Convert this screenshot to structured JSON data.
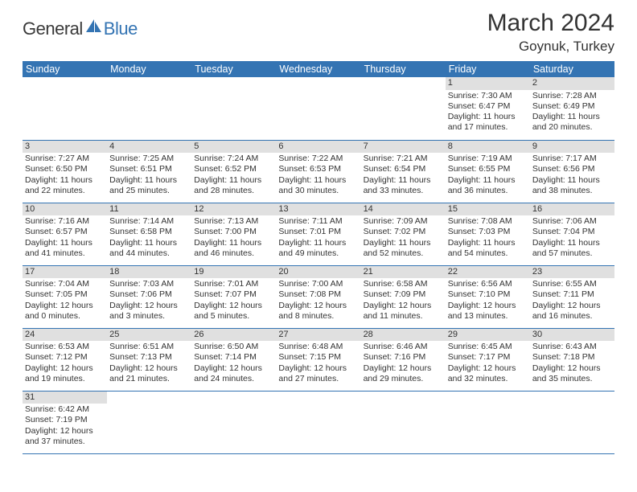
{
  "logo": {
    "text1": "General",
    "text2": "Blue"
  },
  "title": "March 2024",
  "location": "Goynuk, Turkey",
  "colors": {
    "header_bg": "#3474b3",
    "header_fg": "#ffffff",
    "daynum_bg": "#e0e0e0",
    "rule": "#3474b3",
    "logo_blue": "#3474b3",
    "text": "#333333"
  },
  "daynames": [
    "Sunday",
    "Monday",
    "Tuesday",
    "Wednesday",
    "Thursday",
    "Friday",
    "Saturday"
  ],
  "rows": [
    [
      null,
      null,
      null,
      null,
      null,
      {
        "n": "1",
        "sr": "7:30 AM",
        "ss": "6:47 PM",
        "dl": "11 hours and 17 minutes."
      },
      {
        "n": "2",
        "sr": "7:28 AM",
        "ss": "6:49 PM",
        "dl": "11 hours and 20 minutes."
      }
    ],
    [
      {
        "n": "3",
        "sr": "7:27 AM",
        "ss": "6:50 PM",
        "dl": "11 hours and 22 minutes."
      },
      {
        "n": "4",
        "sr": "7:25 AM",
        "ss": "6:51 PM",
        "dl": "11 hours and 25 minutes."
      },
      {
        "n": "5",
        "sr": "7:24 AM",
        "ss": "6:52 PM",
        "dl": "11 hours and 28 minutes."
      },
      {
        "n": "6",
        "sr": "7:22 AM",
        "ss": "6:53 PM",
        "dl": "11 hours and 30 minutes."
      },
      {
        "n": "7",
        "sr": "7:21 AM",
        "ss": "6:54 PM",
        "dl": "11 hours and 33 minutes."
      },
      {
        "n": "8",
        "sr": "7:19 AM",
        "ss": "6:55 PM",
        "dl": "11 hours and 36 minutes."
      },
      {
        "n": "9",
        "sr": "7:17 AM",
        "ss": "6:56 PM",
        "dl": "11 hours and 38 minutes."
      }
    ],
    [
      {
        "n": "10",
        "sr": "7:16 AM",
        "ss": "6:57 PM",
        "dl": "11 hours and 41 minutes."
      },
      {
        "n": "11",
        "sr": "7:14 AM",
        "ss": "6:58 PM",
        "dl": "11 hours and 44 minutes."
      },
      {
        "n": "12",
        "sr": "7:13 AM",
        "ss": "7:00 PM",
        "dl": "11 hours and 46 minutes."
      },
      {
        "n": "13",
        "sr": "7:11 AM",
        "ss": "7:01 PM",
        "dl": "11 hours and 49 minutes."
      },
      {
        "n": "14",
        "sr": "7:09 AM",
        "ss": "7:02 PM",
        "dl": "11 hours and 52 minutes."
      },
      {
        "n": "15",
        "sr": "7:08 AM",
        "ss": "7:03 PM",
        "dl": "11 hours and 54 minutes."
      },
      {
        "n": "16",
        "sr": "7:06 AM",
        "ss": "7:04 PM",
        "dl": "11 hours and 57 minutes."
      }
    ],
    [
      {
        "n": "17",
        "sr": "7:04 AM",
        "ss": "7:05 PM",
        "dl": "12 hours and 0 minutes."
      },
      {
        "n": "18",
        "sr": "7:03 AM",
        "ss": "7:06 PM",
        "dl": "12 hours and 3 minutes."
      },
      {
        "n": "19",
        "sr": "7:01 AM",
        "ss": "7:07 PM",
        "dl": "12 hours and 5 minutes."
      },
      {
        "n": "20",
        "sr": "7:00 AM",
        "ss": "7:08 PM",
        "dl": "12 hours and 8 minutes."
      },
      {
        "n": "21",
        "sr": "6:58 AM",
        "ss": "7:09 PM",
        "dl": "12 hours and 11 minutes."
      },
      {
        "n": "22",
        "sr": "6:56 AM",
        "ss": "7:10 PM",
        "dl": "12 hours and 13 minutes."
      },
      {
        "n": "23",
        "sr": "6:55 AM",
        "ss": "7:11 PM",
        "dl": "12 hours and 16 minutes."
      }
    ],
    [
      {
        "n": "24",
        "sr": "6:53 AM",
        "ss": "7:12 PM",
        "dl": "12 hours and 19 minutes."
      },
      {
        "n": "25",
        "sr": "6:51 AM",
        "ss": "7:13 PM",
        "dl": "12 hours and 21 minutes."
      },
      {
        "n": "26",
        "sr": "6:50 AM",
        "ss": "7:14 PM",
        "dl": "12 hours and 24 minutes."
      },
      {
        "n": "27",
        "sr": "6:48 AM",
        "ss": "7:15 PM",
        "dl": "12 hours and 27 minutes."
      },
      {
        "n": "28",
        "sr": "6:46 AM",
        "ss": "7:16 PM",
        "dl": "12 hours and 29 minutes."
      },
      {
        "n": "29",
        "sr": "6:45 AM",
        "ss": "7:17 PM",
        "dl": "12 hours and 32 minutes."
      },
      {
        "n": "30",
        "sr": "6:43 AM",
        "ss": "7:18 PM",
        "dl": "12 hours and 35 minutes."
      }
    ],
    [
      {
        "n": "31",
        "sr": "6:42 AM",
        "ss": "7:19 PM",
        "dl": "12 hours and 37 minutes."
      },
      null,
      null,
      null,
      null,
      null,
      null
    ]
  ],
  "labels": {
    "sunrise": "Sunrise:",
    "sunset": "Sunset:",
    "daylight": "Daylight:"
  }
}
